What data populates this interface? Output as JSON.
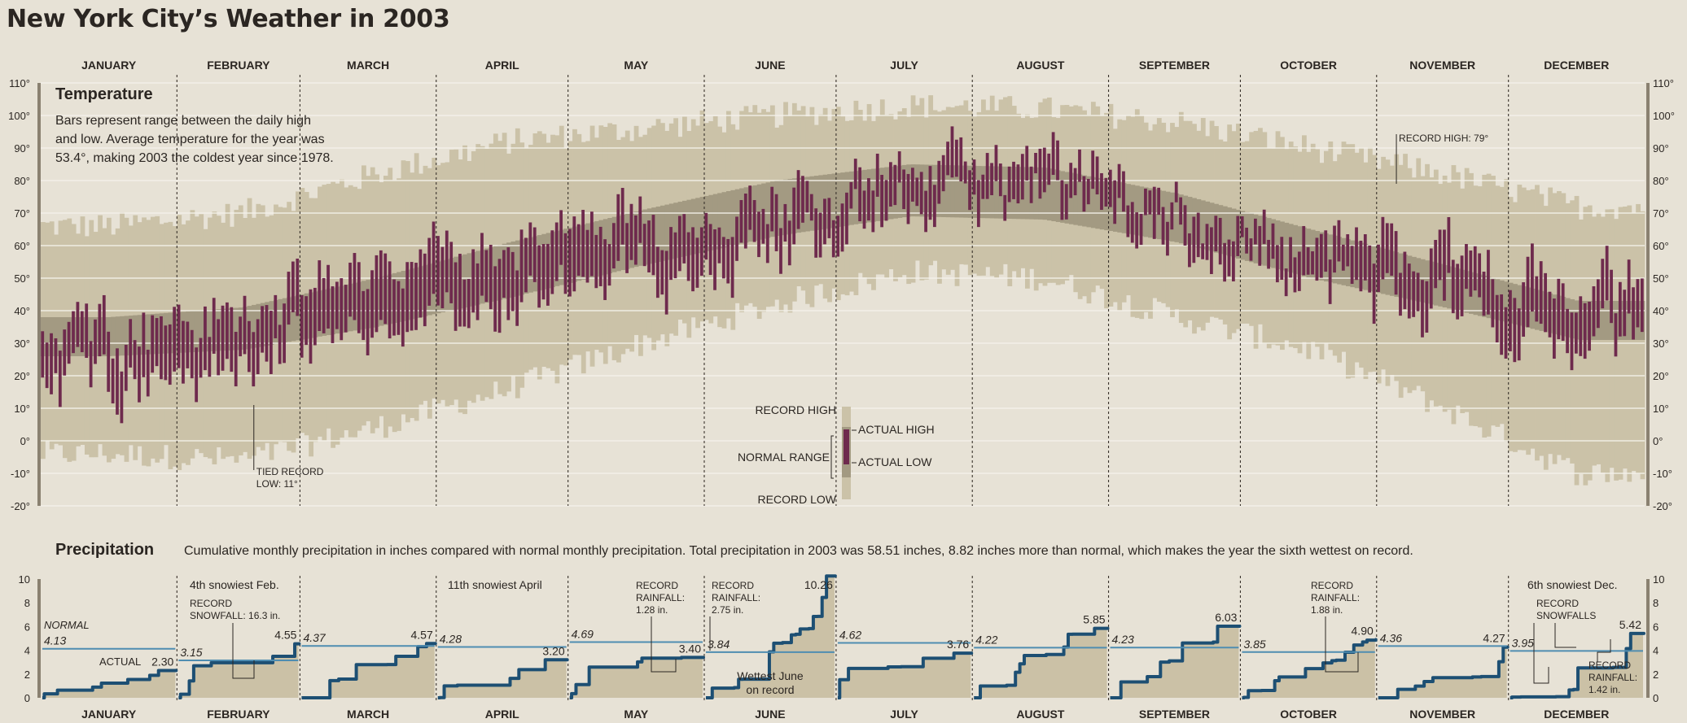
{
  "title": "New York City’s Weather in 2003",
  "months": [
    "JANUARY",
    "FEBRUARY",
    "MARCH",
    "APRIL",
    "MAY",
    "JUNE",
    "JULY",
    "AUGUST",
    "SEPTEMBER",
    "OCTOBER",
    "NOVEMBER",
    "DECEMBER"
  ],
  "colors": {
    "background": "#e7e2d6",
    "record_band": "#cbc2a8",
    "normal_band": "#a39a82",
    "actual_bar": "#6e2a4d",
    "precip_fill": "#cbc1a6",
    "actual_line": "#1d4f73",
    "normal_line": "#4f8db1"
  },
  "temperature": {
    "title": "Temperature",
    "description": [
      "Bars represent range between the daily high",
      "and low. Average temperature for the year was",
      "53.4°, making 2003 the coldest year since 1978."
    ],
    "y_ticks": [
      "110°",
      "100°",
      "90°",
      "80°",
      "70°",
      "60°",
      "50°",
      "40°",
      "30°",
      "20°",
      "10°",
      "0°",
      "-10°",
      "-20°"
    ],
    "legend": {
      "record_high": "RECORD HIGH",
      "normal_range": "NORMAL RANGE",
      "record_low": "RECORD LOW",
      "actual_high": "ACTUAL HIGH",
      "actual_low": "ACTUAL LOW"
    },
    "annotations": {
      "tied_record_line1": "TIED RECORD",
      "tied_record_line2": "LOW: 11°",
      "record_high": "RECORD HIGH: 79°"
    }
  },
  "precipitation": {
    "title": "Precipitation",
    "description": "Cumulative monthly precipitation in inches compared with normal monthly precipitation. Total precipitation in 2003 was 58.51 inches, 8.82 inches more than normal, which makes the year the sixth wettest on record.",
    "y_ticks": [
      "10",
      "8",
      "6",
      "4",
      "2",
      "0"
    ],
    "normal_label": "NORMAL",
    "actual_label": "ACTUAL",
    "annotations": {
      "feb_snow": "4th snowiest Feb.",
      "feb_snowfall_1": "RECORD",
      "feb_snowfall_2": "SNOWFALL: 16.3 in.",
      "april_snow": "11th snowiest April",
      "may_rain_1": "RECORD",
      "may_rain_2": "RAINFALL:",
      "may_rain_3": "1.28 in.",
      "june_rain_1": "RECORD",
      "june_rain_2": "RAINFALL:",
      "june_rain_3": "2.75 in.",
      "june_wet_1": "Wettest June",
      "june_wet_2": "on record",
      "oct_rain_1": "RECORD",
      "oct_rain_2": "RAINFALL:",
      "oct_rain_3": "1.88 in.",
      "dec_snow": "6th snowiest Dec.",
      "dec_snowfalls_1": "RECORD",
      "dec_snowfalls_2": "SNOWFALLS",
      "dec_rain_1": "RECORD",
      "dec_rain_2": "RAINFALL:",
      "dec_rain_3": "1.42 in."
    }
  },
  "chart_data": [
    {
      "type": "bar",
      "title": "Temperature",
      "ylim": [
        -20,
        110
      ],
      "y_unit": "°F",
      "x": "day of year 2003 (365 days)",
      "series": [
        {
          "name": "RECORD HIGH",
          "monthly_anchor_values": [
            66,
            70,
            82,
            92,
            96,
            100,
            103,
            102,
            98,
            90,
            82,
            72
          ]
        },
        {
          "name": "RECORD LOW",
          "monthly_anchor_values": [
            -4,
            -6,
            4,
            16,
            30,
            42,
            52,
            50,
            38,
            28,
            10,
            -10
          ]
        },
        {
          "name": "NORMAL RANGE high",
          "monthly_anchor_values": [
            38,
            41,
            50,
            61,
            71,
            80,
            85,
            84,
            76,
            65,
            54,
            43
          ]
        },
        {
          "name": "NORMAL RANGE low",
          "monthly_anchor_values": [
            26,
            28,
            35,
            44,
            54,
            63,
            69,
            68,
            61,
            50,
            41,
            31
          ]
        },
        {
          "name": "ACTUAL HIGH",
          "monthly_anchor_values": [
            36,
            38,
            54,
            60,
            66,
            74,
            84,
            83,
            74,
            62,
            58,
            46
          ]
        },
        {
          "name": "ACTUAL LOW",
          "monthly_anchor_values": [
            20,
            22,
            34,
            40,
            50,
            60,
            72,
            72,
            64,
            50,
            40,
            30
          ]
        }
      ],
      "annotations": [
        {
          "text": "TIED RECORD LOW: 11°",
          "month": "FEBRUARY",
          "value": 11
        },
        {
          "text": "RECORD HIGH: 79°",
          "month": "NOVEMBER",
          "value": 79
        }
      ]
    },
    {
      "type": "area",
      "title": "Precipitation",
      "ylim": [
        0,
        10
      ],
      "y_unit": "inches",
      "categories": [
        "JANUARY",
        "FEBRUARY",
        "MARCH",
        "APRIL",
        "MAY",
        "JUNE",
        "JULY",
        "AUGUST",
        "SEPTEMBER",
        "OCTOBER",
        "NOVEMBER",
        "DECEMBER"
      ],
      "series": [
        {
          "name": "NORMAL",
          "values": [
            4.13,
            3.15,
            4.37,
            4.28,
            4.69,
            3.84,
            4.62,
            4.22,
            4.23,
            3.85,
            4.36,
            3.95
          ]
        },
        {
          "name": "ACTUAL",
          "values": [
            2.3,
            4.55,
            4.57,
            3.2,
            3.4,
            10.26,
            3.76,
            5.85,
            6.03,
            4.9,
            4.27,
            5.42
          ]
        }
      ]
    }
  ]
}
